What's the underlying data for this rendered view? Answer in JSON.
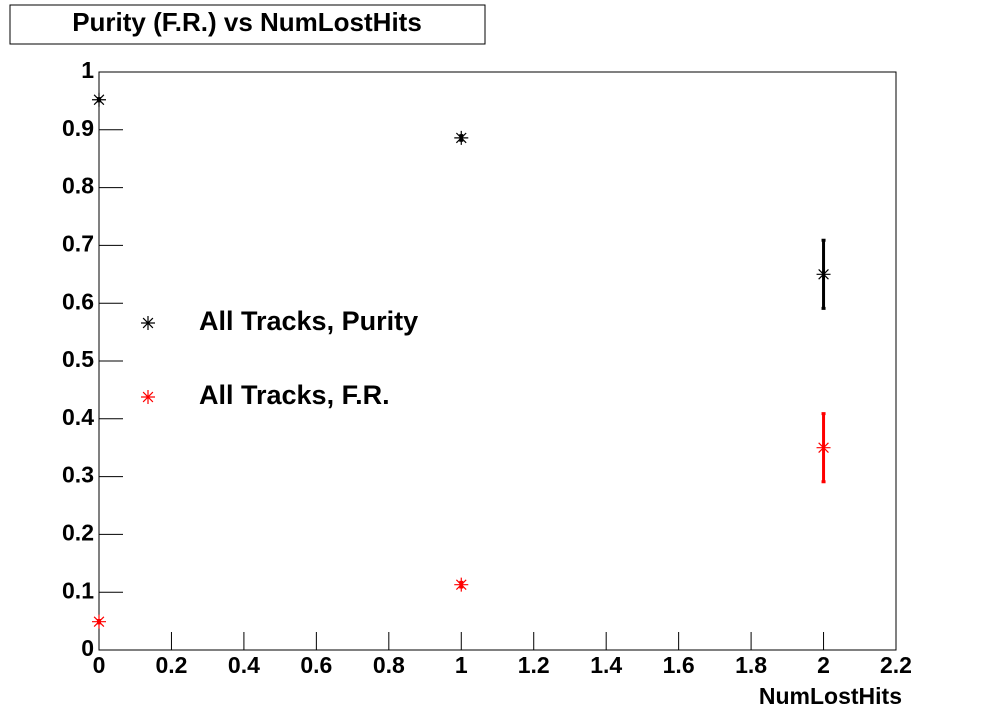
{
  "chart_data": {
    "type": "scatter",
    "title": "Purity (F.R.) vs NumLostHits",
    "x_label": "NumLostHits",
    "xlim": [
      0,
      2.2
    ],
    "xticks": [
      0,
      0.2,
      0.4,
      0.6,
      0.8,
      1,
      1.2,
      1.4,
      1.6,
      1.8,
      2,
      2.2
    ],
    "ylim": [
      0,
      1
    ],
    "yticks": [
      0,
      0.1,
      0.2,
      0.3,
      0.4,
      0.5,
      0.6,
      0.7,
      0.8,
      0.9,
      1
    ],
    "grid": false,
    "legend_position": "left",
    "series": [
      {
        "name": "All Tracks, Purity",
        "color": "#000000",
        "x": [
          0,
          1,
          2
        ],
        "values": [
          0.952,
          0.886,
          0.65
        ],
        "errors": [
          0.002,
          0.004,
          0.059
        ]
      },
      {
        "name": "All Tracks, F.R.",
        "color": "#ff0000",
        "x": [
          0,
          1,
          2
        ],
        "values": [
          0.049,
          0.113,
          0.35
        ],
        "errors": [
          0.002,
          0.004,
          0.059
        ]
      }
    ]
  }
}
